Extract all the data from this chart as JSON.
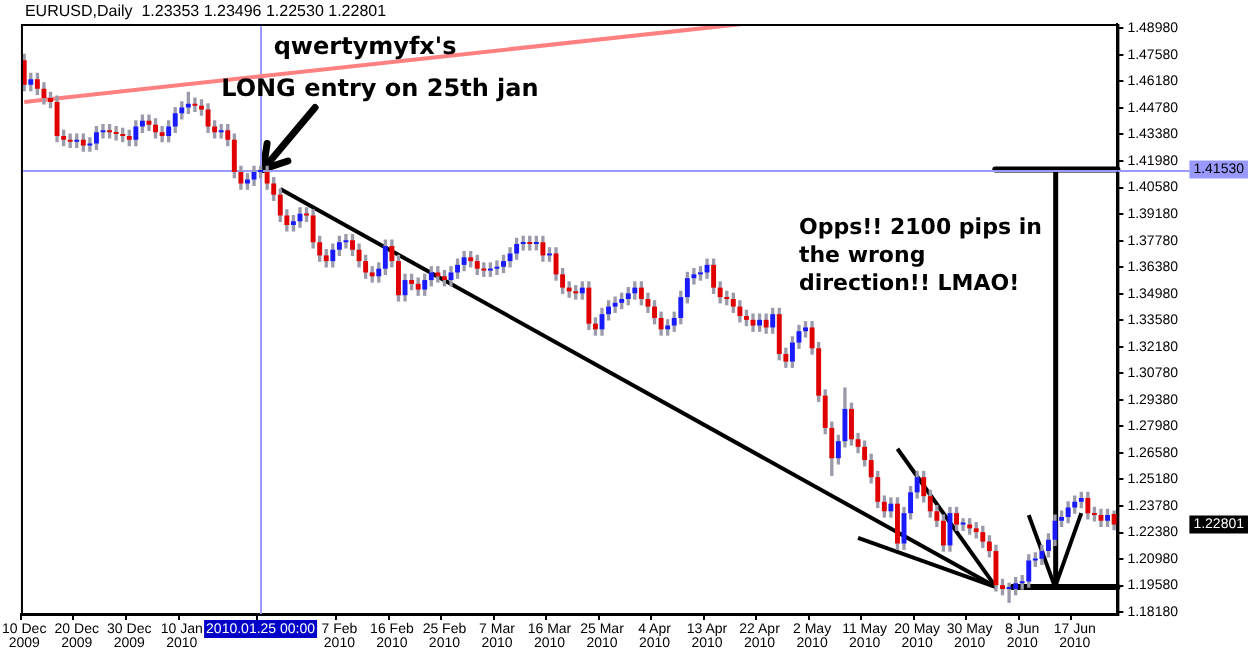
{
  "chart_data": {
    "type": "candlestick",
    "title": "EURUSD,Daily  1.23353 1.23496 1.22530 1.22801",
    "categories": [
      "10 Dec 2009",
      null,
      null,
      null,
      null,
      null,
      null,
      null,
      "20 Dec 2009",
      null,
      null,
      null,
      null,
      null,
      null,
      null,
      "30 Dec 2009",
      null,
      null,
      null,
      null,
      null,
      null,
      null,
      "10 Jan 2010",
      null,
      null,
      null,
      null,
      null,
      null,
      null,
      null,
      null,
      null,
      null,
      "2010.01.25 00:00",
      null,
      null,
      null,
      null,
      null,
      null,
      null,
      null,
      null,
      null,
      null,
      "7 Feb 2010",
      null,
      null,
      null,
      null,
      null,
      null,
      null,
      "16 Feb 2010",
      null,
      null,
      null,
      null,
      null,
      null,
      null,
      "25 Feb 2010",
      null,
      null,
      null,
      null,
      null,
      null,
      null,
      "7 Mar 2010",
      null,
      null,
      null,
      null,
      null,
      null,
      null,
      "16 Mar 2010",
      null,
      null,
      null,
      null,
      null,
      null,
      null,
      "25 Mar 2010",
      null,
      null,
      null,
      null,
      null,
      null,
      null,
      "4 Apr 2010",
      null,
      null,
      null,
      null,
      null,
      null,
      null,
      "13 Apr 2010",
      null,
      null,
      null,
      null,
      null,
      null,
      null,
      "22 Apr 2010",
      null,
      null,
      null,
      null,
      null,
      null,
      null,
      "2 May 2010",
      null,
      null,
      null,
      null,
      null,
      null,
      null,
      "11 May 2010",
      null,
      null,
      null,
      null,
      null,
      null,
      null,
      "20 May 2010",
      null,
      null,
      null,
      null,
      null,
      null,
      null,
      "30 May 2010",
      null,
      null,
      null,
      null,
      null,
      null,
      null,
      "8 Jun 2010",
      null,
      null,
      null,
      null,
      null,
      null,
      null,
      "17 Jun 2010",
      null,
      null,
      null,
      null,
      null,
      null
    ],
    "ohlc": [
      [
        1.473,
        1.476,
        1.457,
        1.46
      ],
      [
        1.46,
        1.466,
        1.457,
        1.463
      ],
      [
        1.463,
        1.466,
        1.455,
        1.458
      ],
      [
        1.458,
        1.461,
        1.45,
        1.453
      ],
      [
        1.453,
        1.456,
        1.448,
        1.451
      ],
      [
        1.451,
        1.454,
        1.43,
        1.433
      ],
      [
        1.433,
        1.436,
        1.428,
        1.431
      ],
      [
        1.431,
        1.434,
        1.427,
        1.43
      ],
      [
        1.43,
        1.434,
        1.427,
        1.431
      ],
      [
        1.431,
        1.434,
        1.425,
        1.428
      ],
      [
        1.428,
        1.432,
        1.425,
        1.429
      ],
      [
        1.429,
        1.438,
        1.426,
        1.435
      ],
      [
        1.435,
        1.439,
        1.432,
        1.436
      ],
      [
        1.436,
        1.439,
        1.432,
        1.435
      ],
      [
        1.435,
        1.438,
        1.431,
        1.434
      ],
      [
        1.434,
        1.437,
        1.43,
        1.433
      ],
      [
        1.433,
        1.436,
        1.428,
        1.431
      ],
      [
        1.431,
        1.441,
        1.428,
        1.438
      ],
      [
        1.438,
        1.444,
        1.435,
        1.441
      ],
      [
        1.441,
        1.444,
        1.436,
        1.439
      ],
      [
        1.439,
        1.442,
        1.432,
        1.435
      ],
      [
        1.435,
        1.438,
        1.43,
        1.433
      ],
      [
        1.433,
        1.441,
        1.43,
        1.438
      ],
      [
        1.438,
        1.448,
        1.435,
        1.445
      ],
      [
        1.445,
        1.451,
        1.442,
        1.448
      ],
      [
        1.448,
        1.456,
        1.445,
        1.45
      ],
      [
        1.45,
        1.453,
        1.446,
        1.449
      ],
      [
        1.449,
        1.452,
        1.444,
        1.447
      ],
      [
        1.447,
        1.45,
        1.435,
        1.438
      ],
      [
        1.438,
        1.441,
        1.432,
        1.435
      ],
      [
        1.435,
        1.439,
        1.432,
        1.436
      ],
      [
        1.436,
        1.439,
        1.428,
        1.431
      ],
      [
        1.431,
        1.434,
        1.411,
        1.414
      ],
      [
        1.414,
        1.417,
        1.405,
        1.408
      ],
      [
        1.408,
        1.413,
        1.405,
        1.41
      ],
      [
        1.41,
        1.417,
        1.407,
        1.414
      ],
      [
        1.414,
        1.417,
        1.411,
        1.414
      ],
      [
        1.414,
        1.417,
        1.405,
        1.408
      ],
      [
        1.408,
        1.411,
        1.399,
        1.402
      ],
      [
        1.402,
        1.405,
        1.388,
        1.391
      ],
      [
        1.391,
        1.394,
        1.383,
        1.386
      ],
      [
        1.386,
        1.391,
        1.383,
        1.388
      ],
      [
        1.388,
        1.395,
        1.385,
        1.392
      ],
      [
        1.392,
        1.395,
        1.388,
        1.391
      ],
      [
        1.391,
        1.394,
        1.374,
        1.377
      ],
      [
        1.377,
        1.38,
        1.367,
        1.37
      ],
      [
        1.37,
        1.373,
        1.364,
        1.367
      ],
      [
        1.367,
        1.376,
        1.364,
        1.373
      ],
      [
        1.373,
        1.38,
        1.37,
        1.377
      ],
      [
        1.377,
        1.381,
        1.374,
        1.378
      ],
      [
        1.378,
        1.381,
        1.37,
        1.373
      ],
      [
        1.373,
        1.376,
        1.364,
        1.367
      ],
      [
        1.367,
        1.37,
        1.358,
        1.361
      ],
      [
        1.361,
        1.364,
        1.356,
        1.359
      ],
      [
        1.359,
        1.366,
        1.356,
        1.363
      ],
      [
        1.363,
        1.378,
        1.36,
        1.375
      ],
      [
        1.375,
        1.378,
        1.364,
        1.367
      ],
      [
        1.367,
        1.37,
        1.346,
        1.349
      ],
      [
        1.349,
        1.36,
        1.346,
        1.357
      ],
      [
        1.357,
        1.36,
        1.352,
        1.355
      ],
      [
        1.355,
        1.358,
        1.349,
        1.352
      ],
      [
        1.352,
        1.36,
        1.349,
        1.357
      ],
      [
        1.357,
        1.364,
        1.354,
        1.361
      ],
      [
        1.361,
        1.364,
        1.356,
        1.359
      ],
      [
        1.359,
        1.362,
        1.354,
        1.357
      ],
      [
        1.357,
        1.364,
        1.354,
        1.361
      ],
      [
        1.361,
        1.368,
        1.358,
        1.365
      ],
      [
        1.365,
        1.372,
        1.362,
        1.369
      ],
      [
        1.369,
        1.372,
        1.364,
        1.367
      ],
      [
        1.367,
        1.37,
        1.36,
        1.363
      ],
      [
        1.363,
        1.366,
        1.359,
        1.362
      ],
      [
        1.362,
        1.366,
        1.359,
        1.363
      ],
      [
        1.363,
        1.367,
        1.36,
        1.364
      ],
      [
        1.364,
        1.37,
        1.361,
        1.367
      ],
      [
        1.367,
        1.374,
        1.364,
        1.371
      ],
      [
        1.371,
        1.379,
        1.368,
        1.376
      ],
      [
        1.376,
        1.38,
        1.373,
        1.377
      ],
      [
        1.377,
        1.38,
        1.373,
        1.376
      ],
      [
        1.376,
        1.38,
        1.373,
        1.377
      ],
      [
        1.377,
        1.38,
        1.367,
        1.37
      ],
      [
        1.37,
        1.374,
        1.367,
        1.371
      ],
      [
        1.371,
        1.374,
        1.357,
        1.36
      ],
      [
        1.36,
        1.363,
        1.35,
        1.353
      ],
      [
        1.353,
        1.356,
        1.348,
        1.351
      ],
      [
        1.351,
        1.354,
        1.347,
        1.35
      ],
      [
        1.35,
        1.356,
        1.347,
        1.353
      ],
      [
        1.353,
        1.356,
        1.331,
        1.334
      ],
      [
        1.334,
        1.337,
        1.328,
        1.331
      ],
      [
        1.331,
        1.342,
        1.328,
        1.339
      ],
      [
        1.339,
        1.346,
        1.336,
        1.343
      ],
      [
        1.343,
        1.348,
        1.34,
        1.345
      ],
      [
        1.345,
        1.35,
        1.342,
        1.347
      ],
      [
        1.347,
        1.353,
        1.344,
        1.35
      ],
      [
        1.35,
        1.356,
        1.347,
        1.353
      ],
      [
        1.353,
        1.356,
        1.344,
        1.347
      ],
      [
        1.347,
        1.35,
        1.34,
        1.343
      ],
      [
        1.343,
        1.346,
        1.334,
        1.337
      ],
      [
        1.337,
        1.34,
        1.328,
        1.331
      ],
      [
        1.331,
        1.336,
        1.328,
        1.333
      ],
      [
        1.333,
        1.34,
        1.33,
        1.337
      ],
      [
        1.337,
        1.351,
        1.334,
        1.348
      ],
      [
        1.348,
        1.361,
        1.345,
        1.358
      ],
      [
        1.358,
        1.363,
        1.355,
        1.36
      ],
      [
        1.36,
        1.364,
        1.357,
        1.361
      ],
      [
        1.361,
        1.368,
        1.358,
        1.365
      ],
      [
        1.365,
        1.368,
        1.35,
        1.353
      ],
      [
        1.353,
        1.356,
        1.345,
        1.348
      ],
      [
        1.348,
        1.351,
        1.344,
        1.347
      ],
      [
        1.347,
        1.35,
        1.34,
        1.343
      ],
      [
        1.343,
        1.346,
        1.335,
        1.338
      ],
      [
        1.338,
        1.341,
        1.333,
        1.336
      ],
      [
        1.336,
        1.339,
        1.33,
        1.333
      ],
      [
        1.333,
        1.339,
        1.33,
        1.336
      ],
      [
        1.336,
        1.339,
        1.329,
        1.332
      ],
      [
        1.332,
        1.342,
        1.329,
        1.339
      ],
      [
        1.339,
        1.342,
        1.315,
        1.318
      ],
      [
        1.318,
        1.321,
        1.311,
        1.314
      ],
      [
        1.314,
        1.327,
        1.311,
        1.324
      ],
      [
        1.324,
        1.333,
        1.321,
        1.33
      ],
      [
        1.33,
        1.335,
        1.327,
        1.332
      ],
      [
        1.332,
        1.335,
        1.318,
        1.321
      ],
      [
        1.321,
        1.324,
        1.293,
        1.296
      ],
      [
        1.296,
        1.299,
        1.276,
        1.279
      ],
      [
        1.279,
        1.282,
        1.254,
        1.263
      ],
      [
        1.263,
        1.275,
        1.26,
        1.272
      ],
      [
        1.272,
        1.3,
        1.269,
        1.289
      ],
      [
        1.289,
        1.292,
        1.27,
        1.273
      ],
      [
        1.273,
        1.276,
        1.266,
        1.269
      ],
      [
        1.269,
        1.272,
        1.259,
        1.262
      ],
      [
        1.262,
        1.265,
        1.25,
        1.253
      ],
      [
        1.253,
        1.256,
        1.237,
        1.24
      ],
      [
        1.24,
        1.243,
        1.232,
        1.235
      ],
      [
        1.235,
        1.242,
        1.232,
        1.239
      ],
      [
        1.239,
        1.242,
        1.215,
        1.218
      ],
      [
        1.218,
        1.237,
        1.215,
        1.234
      ],
      [
        1.234,
        1.248,
        1.231,
        1.245
      ],
      [
        1.245,
        1.256,
        1.242,
        1.253
      ],
      [
        1.253,
        1.256,
        1.24,
        1.243
      ],
      [
        1.243,
        1.246,
        1.232,
        1.235
      ],
      [
        1.235,
        1.238,
        1.227,
        1.23
      ],
      [
        1.23,
        1.233,
        1.214,
        1.217
      ],
      [
        1.217,
        1.237,
        1.214,
        1.234
      ],
      [
        1.234,
        1.237,
        1.225,
        1.228
      ],
      [
        1.228,
        1.231,
        1.225,
        1.228
      ],
      [
        1.228,
        1.231,
        1.223,
        1.226
      ],
      [
        1.226,
        1.229,
        1.221,
        1.224
      ],
      [
        1.224,
        1.227,
        1.216,
        1.219
      ],
      [
        1.219,
        1.222,
        1.211,
        1.214
      ],
      [
        1.214,
        1.217,
        1.193,
        1.196
      ],
      [
        1.196,
        1.199,
        1.191,
        1.194
      ],
      [
        1.194,
        1.197,
        1.187,
        1.194
      ],
      [
        1.194,
        1.2,
        1.191,
        1.197
      ],
      [
        1.197,
        1.201,
        1.194,
        1.198
      ],
      [
        1.198,
        1.212,
        1.195,
        1.209
      ],
      [
        1.209,
        1.213,
        1.206,
        1.21
      ],
      [
        1.21,
        1.217,
        1.207,
        1.214
      ],
      [
        1.214,
        1.223,
        1.211,
        1.22
      ],
      [
        1.22,
        1.233,
        1.217,
        1.23
      ],
      [
        1.23,
        1.235,
        1.227,
        1.232
      ],
      [
        1.232,
        1.24,
        1.229,
        1.237
      ],
      [
        1.237,
        1.243,
        1.234,
        1.24
      ],
      [
        1.24,
        1.245,
        1.237,
        1.242
      ],
      [
        1.242,
        1.245,
        1.231,
        1.234
      ],
      [
        1.234,
        1.237,
        1.23,
        1.233
      ],
      [
        1.233,
        1.236,
        1.227,
        1.23
      ],
      [
        1.23,
        1.236,
        1.227,
        1.233
      ],
      [
        1.2335,
        1.235,
        1.2253,
        1.228
      ]
    ],
    "series": [
      {
        "type": "line",
        "color": "#ff8080",
        "values": [
          1.451,
          null,
          null,
          null,
          null,
          null,
          null,
          null,
          null,
          null,
          null,
          null,
          null,
          null,
          null,
          null,
          null,
          null,
          null,
          null,
          null,
          null,
          null,
          null,
          null,
          null,
          null,
          null,
          null,
          null,
          null,
          null,
          null,
          null,
          null,
          null,
          null,
          null,
          null,
          null,
          null,
          null,
          null,
          null,
          null,
          null,
          null,
          null,
          null,
          null,
          null,
          null,
          null,
          null,
          null,
          null,
          null,
          null,
          null,
          null,
          null,
          null,
          null,
          null,
          null,
          null,
          null,
          null,
          null,
          null,
          null,
          null,
          null,
          null,
          null,
          null,
          null,
          null,
          null,
          null,
          null,
          null,
          null,
          null,
          null,
          null,
          null,
          null,
          null,
          null,
          null,
          null,
          null,
          null,
          null,
          null,
          null,
          null,
          null,
          null,
          null,
          null,
          null,
          null,
          null,
          null,
          null,
          null,
          null,
          1.492,
          null,
          null,
          null,
          null,
          null,
          null,
          null,
          null,
          null,
          null,
          null,
          null,
          null,
          null,
          null,
          null,
          null,
          null,
          null,
          null,
          null,
          null,
          null,
          null,
          null,
          null,
          null,
          null,
          null,
          null,
          null,
          null,
          null,
          null,
          null,
          null,
          null,
          null,
          null,
          null,
          null,
          null,
          null,
          null,
          null,
          null,
          null,
          null,
          null,
          null,
          null,
          null,
          null,
          null,
          null,
          null,
          null
        ]
      },
      {
        "type": "line",
        "color": "#000000",
        "values": [
          null,
          null,
          null,
          null,
          null,
          null,
          null,
          null,
          null,
          null,
          null,
          null,
          null,
          null,
          null,
          null,
          null,
          null,
          null,
          null,
          null,
          null,
          null,
          null,
          null,
          null,
          null,
          null,
          null,
          null,
          null,
          null,
          null,
          null,
          null,
          null,
          null,
          null,
          null,
          1.405,
          null,
          null,
          null,
          null,
          null,
          null,
          null,
          null,
          null,
          null,
          null,
          null,
          null,
          null,
          null,
          null,
          null,
          null,
          null,
          null,
          null,
          null,
          null,
          null,
          null,
          null,
          null,
          null,
          null,
          null,
          null,
          null,
          null,
          null,
          null,
          null,
          null,
          null,
          null,
          null,
          null,
          null,
          null,
          null,
          null,
          null,
          null,
          null,
          null,
          null,
          null,
          null,
          null,
          null,
          null,
          null,
          null,
          null,
          null,
          null,
          null,
          null,
          null,
          null,
          null,
          null,
          null,
          null,
          null,
          null,
          null,
          null,
          null,
          null,
          null,
          null,
          null,
          null,
          null,
          null,
          null,
          null,
          null,
          null,
          null,
          null,
          null,
          null,
          null,
          null,
          null,
          null,
          null,
          null,
          null,
          null,
          null,
          null,
          null,
          null,
          null,
          null,
          null,
          null,
          null,
          null,
          null,
          null,
          1.195,
          null,
          null,
          null,
          null,
          null,
          null,
          null,
          null,
          null,
          null,
          null,
          null,
          null,
          null,
          null,
          null,
          null,
          null
        ]
      },
      {
        "type": "line",
        "color": "#000000",
        "values": [
          null,
          null,
          null,
          null,
          null,
          null,
          null,
          null,
          null,
          null,
          null,
          null,
          null,
          null,
          null,
          null,
          null,
          null,
          null,
          null,
          null,
          null,
          null,
          null,
          null,
          null,
          null,
          null,
          null,
          null,
          null,
          null,
          null,
          null,
          null,
          null,
          null,
          null,
          null,
          null,
          null,
          null,
          null,
          null,
          null,
          null,
          null,
          null,
          null,
          null,
          null,
          null,
          null,
          null,
          null,
          null,
          null,
          null,
          null,
          null,
          null,
          null,
          null,
          null,
          null,
          null,
          null,
          null,
          null,
          null,
          null,
          null,
          null,
          null,
          null,
          null,
          null,
          null,
          null,
          null,
          null,
          null,
          null,
          null,
          null,
          null,
          null,
          null,
          null,
          null,
          null,
          null,
          null,
          null,
          null,
          null,
          null,
          null,
          null,
          null,
          null,
          null,
          null,
          null,
          null,
          null,
          null,
          null,
          null,
          null,
          null,
          null,
          null,
          null,
          null,
          null,
          null,
          null,
          null,
          null,
          null,
          null,
          null,
          null,
          null,
          null,
          null,
          1.221,
          null,
          null,
          null,
          null,
          null,
          null,
          null,
          null,
          null,
          null,
          null,
          null,
          null,
          null,
          null,
          null,
          null,
          null,
          null,
          null,
          1.195,
          null,
          null,
          null,
          null,
          null,
          null,
          null,
          null,
          null,
          null,
          null,
          null,
          null,
          null,
          null,
          null,
          null,
          null
        ]
      },
      {
        "type": "line",
        "color": "#000000",
        "values": [
          null,
          null,
          null,
          null,
          null,
          null,
          null,
          null,
          null,
          null,
          null,
          null,
          null,
          null,
          null,
          null,
          null,
          null,
          null,
          null,
          null,
          null,
          null,
          null,
          null,
          null,
          null,
          null,
          null,
          null,
          null,
          null,
          null,
          null,
          null,
          null,
          null,
          null,
          null,
          null,
          null,
          null,
          null,
          null,
          null,
          null,
          null,
          null,
          null,
          null,
          null,
          null,
          null,
          null,
          null,
          null,
          null,
          null,
          null,
          null,
          null,
          null,
          null,
          null,
          null,
          null,
          null,
          null,
          null,
          null,
          null,
          null,
          null,
          null,
          null,
          null,
          null,
          null,
          null,
          null,
          null,
          null,
          null,
          null,
          null,
          null,
          null,
          null,
          null,
          null,
          null,
          null,
          null,
          null,
          null,
          null,
          null,
          null,
          null,
          null,
          null,
          null,
          null,
          null,
          null,
          null,
          null,
          null,
          null,
          null,
          null,
          null,
          null,
          null,
          null,
          null,
          null,
          null,
          null,
          null,
          null,
          null,
          null,
          null,
          null,
          null,
          null,
          null,
          null,
          null,
          null,
          null,
          null,
          1.268,
          null,
          null,
          null,
          null,
          null,
          null,
          null,
          null,
          null,
          null,
          null,
          null,
          null,
          null,
          1.195,
          null,
          null,
          null,
          null,
          null,
          null,
          null,
          null,
          null,
          null,
          null,
          null,
          null,
          null,
          null,
          null,
          null,
          null
        ]
      },
      {
        "type": "line",
        "color": "#000000",
        "values": [
          null,
          null,
          null,
          null,
          null,
          null,
          null,
          null,
          null,
          null,
          null,
          null,
          null,
          null,
          null,
          null,
          null,
          null,
          null,
          null,
          null,
          null,
          null,
          null,
          null,
          null,
          null,
          null,
          null,
          null,
          null,
          null,
          null,
          null,
          null,
          null,
          null,
          null,
          null,
          null,
          null,
          null,
          null,
          null,
          null,
          null,
          null,
          null,
          null,
          null,
          null,
          null,
          null,
          null,
          null,
          null,
          null,
          null,
          null,
          null,
          null,
          null,
          null,
          null,
          null,
          null,
          null,
          null,
          null,
          null,
          null,
          null,
          null,
          null,
          null,
          null,
          null,
          null,
          null,
          null,
          null,
          null,
          null,
          null,
          null,
          null,
          null,
          null,
          null,
          null,
          null,
          null,
          null,
          null,
          null,
          null,
          null,
          null,
          null,
          null,
          null,
          null,
          null,
          null,
          null,
          null,
          null,
          null,
          null,
          null,
          null,
          null,
          null,
          null,
          null,
          null,
          null,
          null,
          null,
          null,
          null,
          null,
          null,
          null,
          null,
          null,
          null,
          null,
          null,
          null,
          null,
          null,
          null,
          null,
          null,
          null,
          null,
          null,
          null,
          null,
          null,
          null,
          null,
          null,
          null,
          null,
          null,
          null,
          null,
          null,
          null,
          null,
          null,
          1.233,
          null,
          null,
          null,
          1.195,
          null,
          null,
          null,
          1.234,
          null,
          null,
          null,
          null,
          null
        ]
      }
    ],
    "ylim": [
      1.1808,
      1.4921
    ],
    "yticks": [
      {
        "value": 1.1818,
        "label": "1.18180"
      },
      {
        "value": 1.1958,
        "label": "1.19580"
      },
      {
        "value": 1.2098,
        "label": "1.20980"
      },
      {
        "value": 1.2238,
        "label": "1.22380"
      },
      {
        "value": 1.2378,
        "label": "1.23780"
      },
      {
        "value": 1.2518,
        "label": "1.25180"
      },
      {
        "value": 1.2658,
        "label": "1.26580"
      },
      {
        "value": 1.2798,
        "label": "1.27980"
      },
      {
        "value": 1.2938,
        "label": "1.29380"
      },
      {
        "value": 1.3078,
        "label": "1.30780"
      },
      {
        "value": 1.3218,
        "label": "1.32180"
      },
      {
        "value": 1.3358,
        "label": "1.33580"
      },
      {
        "value": 1.3498,
        "label": "1.34980"
      },
      {
        "value": 1.3638,
        "label": "1.36380"
      },
      {
        "value": 1.3778,
        "label": "1.37780"
      },
      {
        "value": 1.3918,
        "label": "1.39180"
      },
      {
        "value": 1.4058,
        "label": "1.40580"
      },
      {
        "value": 1.4198,
        "label": "1.41980"
      },
      {
        "value": 1.4338,
        "label": "1.43380"
      },
      {
        "value": 1.4478,
        "label": "1.44780"
      },
      {
        "value": 1.4618,
        "label": "1.46180"
      },
      {
        "value": 1.4758,
        "label": "1.47580"
      },
      {
        "value": 1.4898,
        "label": "1.48980"
      }
    ],
    "grid": false,
    "legend": false,
    "ref_lines": [
      {
        "axis": "y",
        "value": 1.4153,
        "label": "1.41530",
        "color": "#9999ff"
      },
      {
        "axis": "x",
        "value": "2010.01.25 00:00",
        "color": "#9999ff"
      }
    ],
    "annotations": [
      "qwertymyfx's",
      "LONG  entry on 25th jan",
      {
        "text": "Opps!! 2100 pips in the wrong direction!! LMAO!",
        "y": 1.4153
      },
      "1.22801"
    ]
  }
}
